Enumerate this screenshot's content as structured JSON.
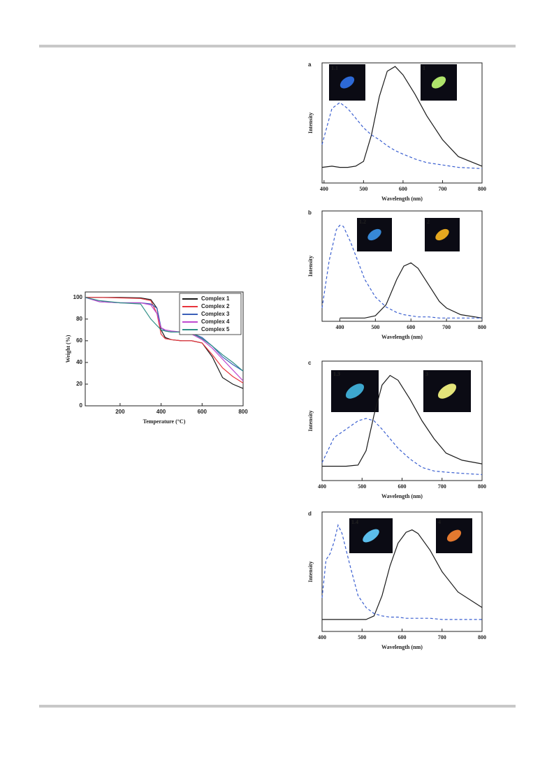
{
  "chart_data": [
    {
      "type": "line",
      "xlabel": "Temperature (°C)",
      "ylabel": "Weight (%)",
      "x": [
        30,
        100,
        200,
        300,
        350,
        380,
        400,
        420,
        450,
        500,
        550,
        600,
        650,
        700,
        750,
        800
      ],
      "xlim": [
        30,
        800
      ],
      "ylim": [
        0,
        105
      ],
      "xticks": [
        200,
        400,
        600,
        800
      ],
      "yticks": [
        0,
        20,
        40,
        60,
        80,
        100
      ],
      "legend": "upper right",
      "series": [
        {
          "name": "Complex 1",
          "color": "#1a1a1a",
          "values": [
            100,
            100,
            100,
            99.5,
            98,
            90,
            70,
            63,
            61,
            60,
            60,
            58,
            45,
            26,
            20,
            16
          ]
        },
        {
          "name": "Complex 2",
          "color": "#e8343c",
          "values": [
            100,
            100,
            99.5,
            99,
            97,
            85,
            66,
            62,
            61,
            60,
            60,
            58,
            47,
            35,
            27,
            21
          ]
        },
        {
          "name": "Complex 3",
          "color": "#3a5fb8",
          "values": [
            100,
            96,
            95,
            95,
            94,
            90,
            72,
            69,
            68,
            68,
            67,
            63,
            55,
            45,
            38,
            32
          ]
        },
        {
          "name": "Complex 4",
          "color": "#c04ad0",
          "values": [
            100,
            96,
            95,
            95,
            93,
            85,
            72,
            70,
            69,
            68,
            66,
            61,
            53,
            43,
            33,
            23
          ]
        },
        {
          "name": "Complex 5",
          "color": "#2e8f86",
          "values": [
            100,
            97,
            95,
            94,
            80,
            74,
            70,
            69,
            68,
            68,
            67,
            62,
            55,
            47,
            40,
            32
          ]
        }
      ]
    },
    {
      "type": "line",
      "panel": "a",
      "xlabel": "Wavelength (nm)",
      "ylabel": "Intensity",
      "x": [
        395,
        420,
        440,
        460,
        480,
        500,
        520,
        540,
        560,
        580,
        600,
        630,
        660,
        700,
        740,
        800
      ],
      "xlim": [
        395,
        800
      ],
      "ylim": [
        0,
        1
      ],
      "xticks": [
        400,
        500,
        600,
        700,
        800
      ],
      "insets": [
        {
          "label": "1.1",
          "color": "#2f6fe0"
        },
        {
          "label": "1",
          "color": "#b8f070"
        }
      ],
      "series": [
        {
          "color": "#1a1a1a",
          "dashed": false,
          "values": [
            0.13,
            0.14,
            0.13,
            0.13,
            0.14,
            0.18,
            0.4,
            0.72,
            0.93,
            0.97,
            0.9,
            0.74,
            0.56,
            0.36,
            0.22,
            0.14
          ]
        },
        {
          "color": "#3a5fd0",
          "dashed": true,
          "values": [
            0.32,
            0.62,
            0.67,
            0.62,
            0.54,
            0.46,
            0.4,
            0.36,
            0.31,
            0.27,
            0.24,
            0.2,
            0.17,
            0.15,
            0.13,
            0.12
          ]
        }
      ]
    },
    {
      "type": "line",
      "panel": "b",
      "xlabel": "Wavelength (nm)",
      "ylabel": "Intensity",
      "x": [
        350,
        370,
        390,
        400,
        410,
        430,
        450,
        470,
        500,
        530,
        560,
        580,
        600,
        620,
        650,
        680,
        700,
        740,
        800
      ],
      "xlim": [
        350,
        800
      ],
      "ylim": [
        0,
        1
      ],
      "xticks": [
        400,
        500,
        600,
        700,
        800
      ],
      "insets": [
        {
          "label": "1.2",
          "color": "#3a8fe0"
        },
        {
          "label": "2",
          "color": "#f0b020"
        }
      ],
      "series": [
        {
          "color": "#1a1a1a",
          "dashed": false,
          "values": [
            null,
            null,
            null,
            0.03,
            0.03,
            0.03,
            0.03,
            0.03,
            0.05,
            0.15,
            0.38,
            0.5,
            0.53,
            0.48,
            0.33,
            0.18,
            0.12,
            0.06,
            0.03
          ]
        },
        {
          "color": "#3a5fd0",
          "dashed": true,
          "values": [
            0.12,
            0.55,
            0.83,
            0.87,
            0.86,
            0.72,
            0.55,
            0.38,
            0.22,
            0.13,
            0.08,
            0.06,
            0.05,
            0.04,
            0.04,
            0.03,
            0.03,
            0.03,
            0.03
          ]
        }
      ]
    },
    {
      "type": "line",
      "panel": "c",
      "xlabel": "Wavelength (nm)",
      "ylabel": "Intensity",
      "x": [
        400,
        430,
        460,
        490,
        510,
        530,
        550,
        570,
        590,
        620,
        650,
        680,
        710,
        750,
        800
      ],
      "xlim": [
        400,
        800
      ],
      "ylim": [
        0,
        1
      ],
      "xticks": [
        400,
        500,
        600,
        700,
        800
      ],
      "insets": [
        {
          "label": "1.3",
          "color": "#40b0d8"
        },
        {
          "label": "3",
          "color": "#f0f080"
        }
      ],
      "series": [
        {
          "color": "#1a1a1a",
          "dashed": false,
          "values": [
            0.12,
            0.12,
            0.12,
            0.13,
            0.25,
            0.55,
            0.8,
            0.88,
            0.84,
            0.68,
            0.5,
            0.35,
            0.23,
            0.17,
            0.14
          ]
        },
        {
          "color": "#3a5fd0",
          "dashed": true,
          "values": [
            0.15,
            0.36,
            0.43,
            0.5,
            0.52,
            0.5,
            0.43,
            0.35,
            0.27,
            0.18,
            0.11,
            0.08,
            0.07,
            0.06,
            0.05
          ]
        }
      ]
    },
    {
      "type": "line",
      "panel": "d",
      "xlabel": "Wavelength (nm)",
      "ylabel": "Intensity",
      "x": [
        400,
        410,
        420,
        430,
        440,
        450,
        470,
        490,
        510,
        530,
        550,
        570,
        590,
        610,
        625,
        640,
        670,
        700,
        740,
        800
      ],
      "xlim": [
        400,
        800
      ],
      "ylim": [
        0,
        1
      ],
      "xticks": [
        400,
        500,
        600,
        700,
        800
      ],
      "insets": [
        {
          "label": "1.4",
          "color": "#60c8f8"
        },
        {
          "label": "4",
          "color": "#f08030"
        }
      ],
      "series": [
        {
          "color": "#1a1a1a",
          "dashed": false,
          "values": [
            0.1,
            0.1,
            0.1,
            0.1,
            0.1,
            0.1,
            0.1,
            0.1,
            0.1,
            0.13,
            0.3,
            0.55,
            0.74,
            0.83,
            0.85,
            0.82,
            0.68,
            0.5,
            0.33,
            0.2
          ]
        },
        {
          "color": "#3a5fd0",
          "dashed": true,
          "values": [
            0.28,
            0.6,
            0.65,
            0.75,
            0.89,
            0.82,
            0.55,
            0.3,
            0.2,
            0.15,
            0.13,
            0.12,
            0.12,
            0.11,
            0.11,
            0.11,
            0.11,
            0.1,
            0.1,
            0.1
          ]
        }
      ]
    }
  ]
}
